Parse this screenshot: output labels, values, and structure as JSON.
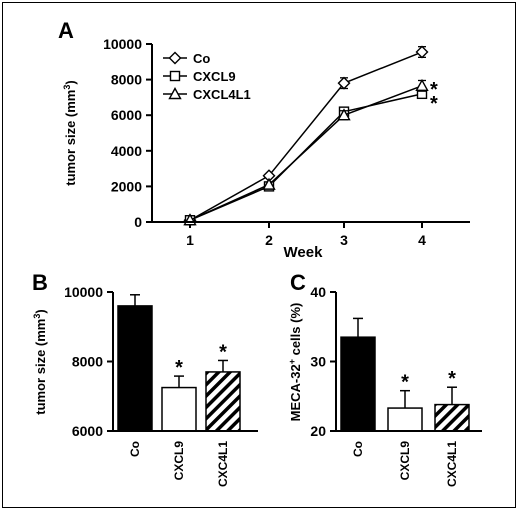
{
  "panels": {
    "A": {
      "letter": "A"
    },
    "B": {
      "letter": "B"
    },
    "C": {
      "letter": "C"
    }
  },
  "chart_data": [
    {
      "panel": "A",
      "type": "line",
      "x": [
        1,
        2,
        3,
        4
      ],
      "xticklabels": [
        "1",
        "2",
        "3",
        "4"
      ],
      "xlabel": "Week",
      "ylabel": "tumor size (mm3)",
      "ylabel_main": "tumor size (mm",
      "ylabel_sup": "3",
      "ylabel_tail": ")",
      "ylim": [
        0,
        10000
      ],
      "yticks": [
        0,
        2000,
        4000,
        6000,
        8000,
        10000
      ],
      "yticklabels": [
        "0",
        "2000",
        "4000",
        "6000",
        "8000",
        "10000"
      ],
      "legend_position": "top-left",
      "series": [
        {
          "name": "Co",
          "marker": "diamond",
          "values": [
            100,
            2600,
            7800,
            9550
          ],
          "errors": [
            0,
            0,
            300,
            300
          ]
        },
        {
          "name": "CXCL9",
          "marker": "square",
          "values": [
            100,
            2000,
            6200,
            7200
          ],
          "errors": [
            0,
            0,
            200,
            200
          ]
        },
        {
          "name": "CXCL4L1",
          "marker": "triangle",
          "values": [
            100,
            2100,
            6000,
            7650
          ],
          "errors": [
            0,
            0,
            250,
            300
          ]
        }
      ],
      "annotations": [
        "*",
        "*"
      ]
    },
    {
      "panel": "B",
      "type": "bar",
      "categories": [
        "Co",
        "CXCL9",
        "CXC4L1"
      ],
      "values": [
        9600,
        7250,
        7700
      ],
      "errors": [
        320,
        330,
        330
      ],
      "ylabel": "tumor size (mm3)",
      "ylabel_main": "tumor size (mm",
      "ylabel_sup": "3",
      "ylabel_tail": ")",
      "ylim": [
        6000,
        10000
      ],
      "yticks": [
        6000,
        8000,
        10000
      ],
      "yticklabels": [
        "6000",
        "8000",
        "10000"
      ],
      "fills": [
        "solid-black",
        "white",
        "hatched"
      ],
      "annotations": [
        "",
        "*",
        "*"
      ]
    },
    {
      "panel": "C",
      "type": "bar",
      "categories": [
        "Co",
        "CXCL9",
        "CXC4L1"
      ],
      "values": [
        33.5,
        23.3,
        23.8
      ],
      "errors": [
        2.7,
        2.5,
        2.5
      ],
      "ylabel": "MECA-32+ cells (%)",
      "ylabel_main": "MECA-32",
      "ylabel_sup": "+",
      "ylabel_tail": " cells (%)",
      "ylim": [
        20,
        40
      ],
      "yticks": [
        20,
        30,
        40
      ],
      "yticklabels": [
        "20",
        "30",
        "40"
      ],
      "fills": [
        "solid-black",
        "white",
        "hatched"
      ],
      "annotations": [
        "",
        "*",
        "*"
      ]
    }
  ]
}
